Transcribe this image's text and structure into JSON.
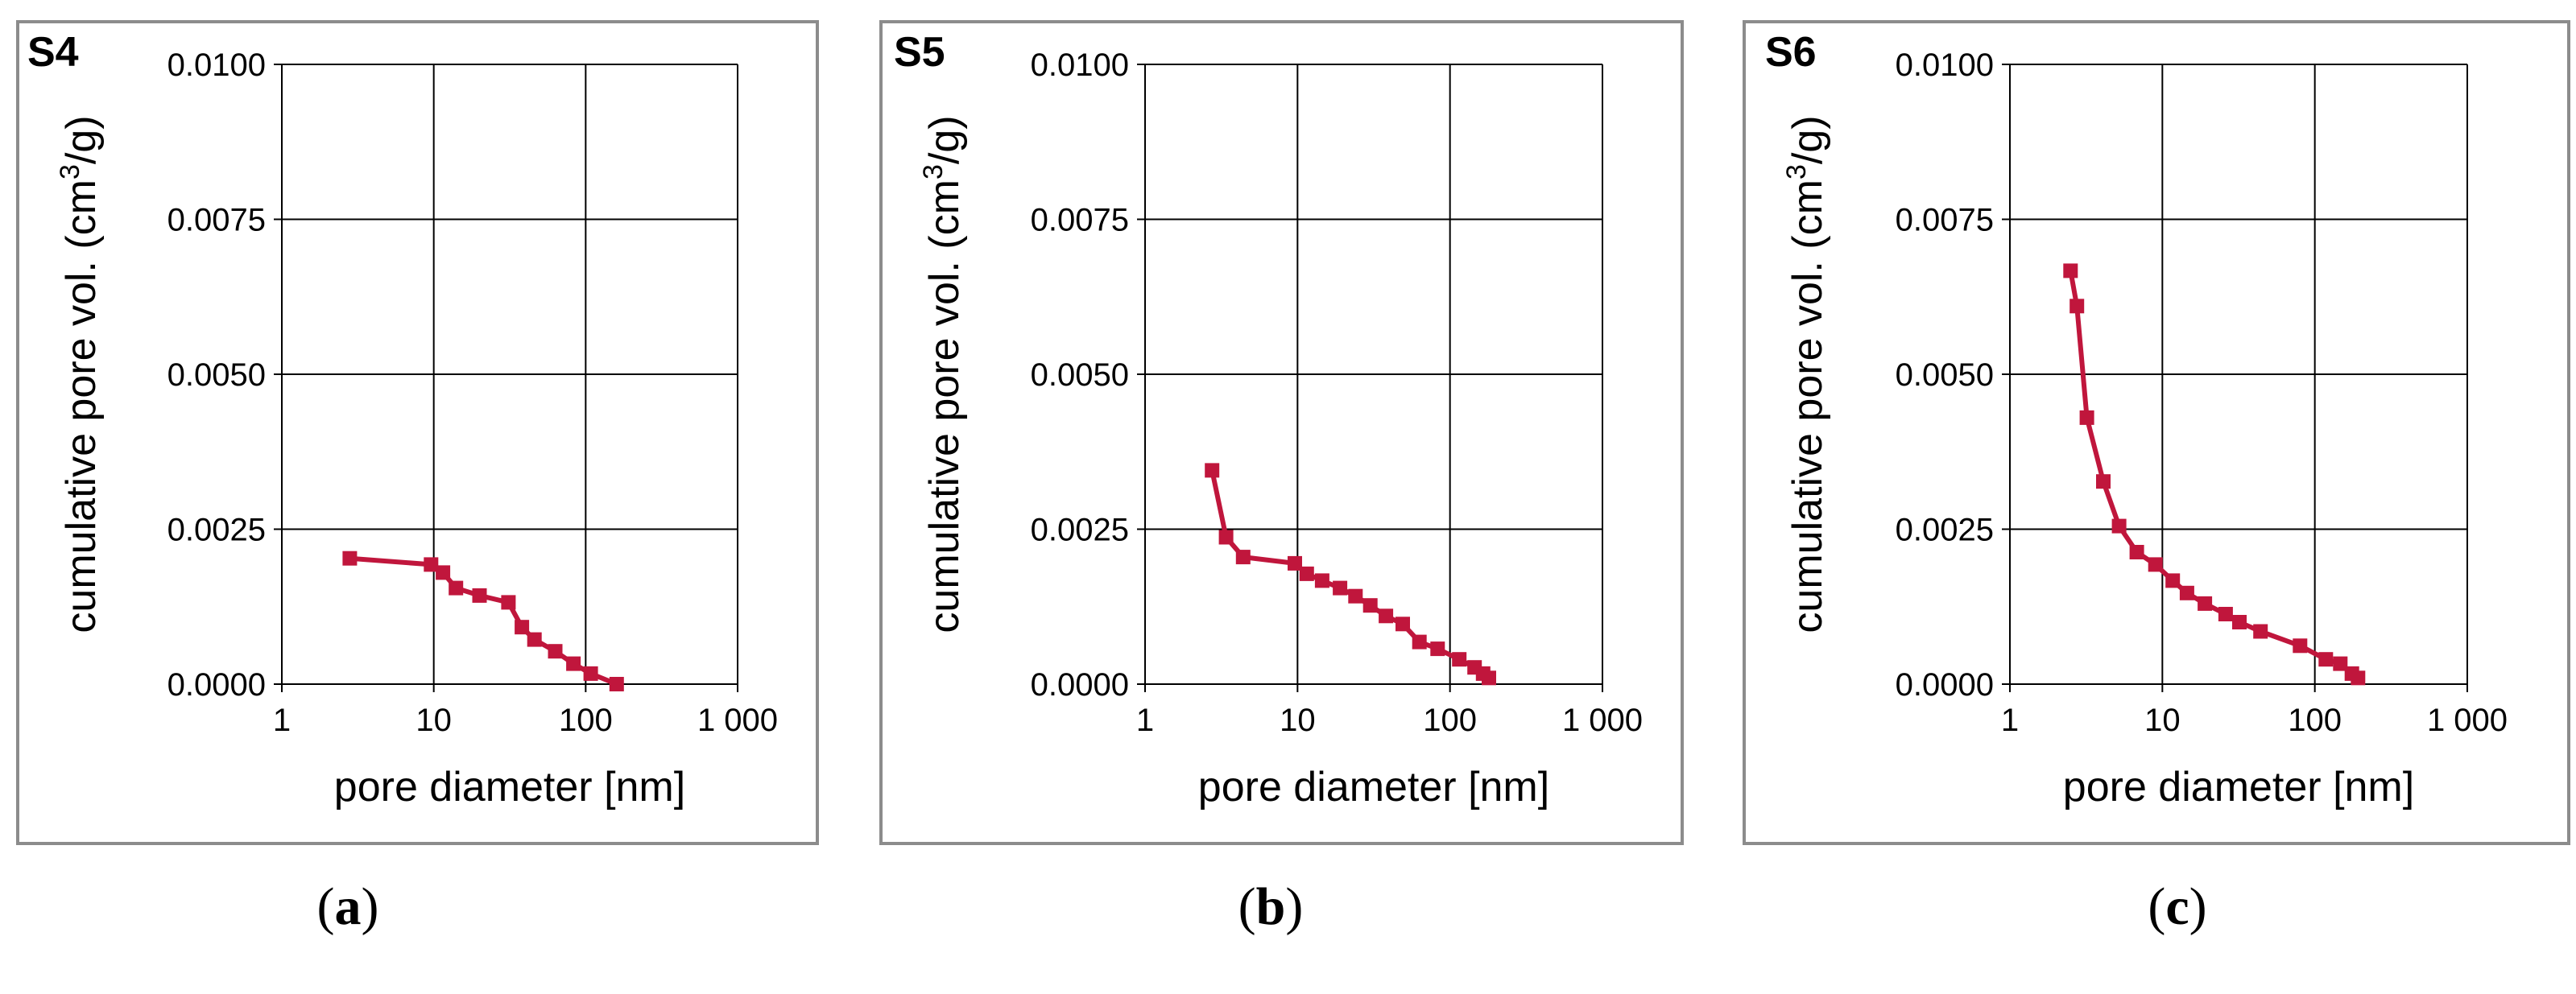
{
  "series_color": "#c0163c",
  "chart_data": [
    {
      "type": "line",
      "panel_label": "S4",
      "caption_open": "(",
      "caption_letter": "a",
      "caption_close": ")",
      "xlabel": "pore diameter [nm]",
      "ylabel_pre": "cumulative pore vol. (cm",
      "ylabel_sup": "3",
      "ylabel_post": "/g)",
      "x_scale": "log",
      "xlim": [
        1,
        1000
      ],
      "ylim": [
        0,
        0.01
      ],
      "grid": true,
      "x_ticks": [
        1,
        10,
        100,
        1000
      ],
      "x_tick_labels": [
        "1",
        "10",
        "100",
        "1 000"
      ],
      "y_ticks": [
        0,
        0.0025,
        0.005,
        0.0075,
        0.01
      ],
      "y_tick_labels": [
        "0.0000",
        "0.0025",
        "0.0050",
        "0.0075",
        "0.0100"
      ],
      "series": [
        {
          "marker": "square",
          "x": [
            2.8,
            9.6,
            11.5,
            14,
            20,
            31,
            38,
            46,
            63,
            83,
            108,
            160
          ],
          "y": [
            0.00203,
            0.00193,
            0.0018,
            0.00155,
            0.00143,
            0.00132,
            0.00092,
            0.00072,
            0.00053,
            0.00033,
            0.00017,
            0.0
          ]
        }
      ]
    },
    {
      "type": "line",
      "panel_label": "S5",
      "caption_open": "(",
      "caption_letter": "b",
      "caption_close": ")",
      "xlabel": "pore diameter [nm]",
      "ylabel_pre": "cumulative pore vol. (cm",
      "ylabel_sup": "3",
      "ylabel_post": "/g)",
      "x_scale": "log",
      "xlim": [
        1,
        1000
      ],
      "ylim": [
        0,
        0.01
      ],
      "grid": true,
      "x_ticks": [
        1,
        10,
        100,
        1000
      ],
      "x_tick_labels": [
        "1",
        "10",
        "100",
        "1 000"
      ],
      "y_ticks": [
        0,
        0.0025,
        0.005,
        0.0075,
        0.01
      ],
      "y_tick_labels": [
        "0.0000",
        "0.0025",
        "0.0050",
        "0.0075",
        "0.0100"
      ],
      "series": [
        {
          "marker": "square",
          "x": [
            2.75,
            3.4,
            4.4,
            9.6,
            11.5,
            14.5,
            19,
            24,
            30,
            38,
            49,
            63,
            83,
            115,
            145,
            165,
            180
          ],
          "y": [
            0.00345,
            0.00237,
            0.00205,
            0.00195,
            0.00178,
            0.00167,
            0.00155,
            0.00142,
            0.00127,
            0.0011,
            0.00097,
            0.00068,
            0.00057,
            0.0004,
            0.00027,
            0.00017,
            0.0001
          ]
        }
      ]
    },
    {
      "type": "line",
      "panel_label": "S6",
      "caption_open": "(",
      "caption_letter": "c",
      "caption_close": ")",
      "xlabel": "pore diameter [nm]",
      "ylabel_pre": "cumulative pore vol. (cm",
      "ylabel_sup": "3",
      "ylabel_post": "/g)",
      "x_scale": "log",
      "xlim": [
        1,
        1000
      ],
      "ylim": [
        0,
        0.01
      ],
      "grid": true,
      "x_ticks": [
        1,
        10,
        100,
        1000
      ],
      "x_tick_labels": [
        "1",
        "10",
        "100",
        "1 000"
      ],
      "y_ticks": [
        0,
        0.0025,
        0.005,
        0.0075,
        0.01
      ],
      "y_tick_labels": [
        "0.0000",
        "0.0025",
        "0.0050",
        "0.0075",
        "0.0100"
      ],
      "series": [
        {
          "marker": "square",
          "x": [
            2.5,
            2.75,
            3.2,
            4.1,
            5.2,
            6.8,
            9.0,
            11.7,
            14.5,
            19,
            26,
            32,
            44,
            80,
            118,
            147,
            175,
            192
          ],
          "y": [
            0.00667,
            0.0061,
            0.0043,
            0.00327,
            0.00255,
            0.00213,
            0.00193,
            0.00167,
            0.00147,
            0.0013,
            0.00113,
            0.001,
            0.00085,
            0.00062,
            0.0004,
            0.00033,
            0.00017,
            0.0001
          ]
        }
      ]
    }
  ]
}
